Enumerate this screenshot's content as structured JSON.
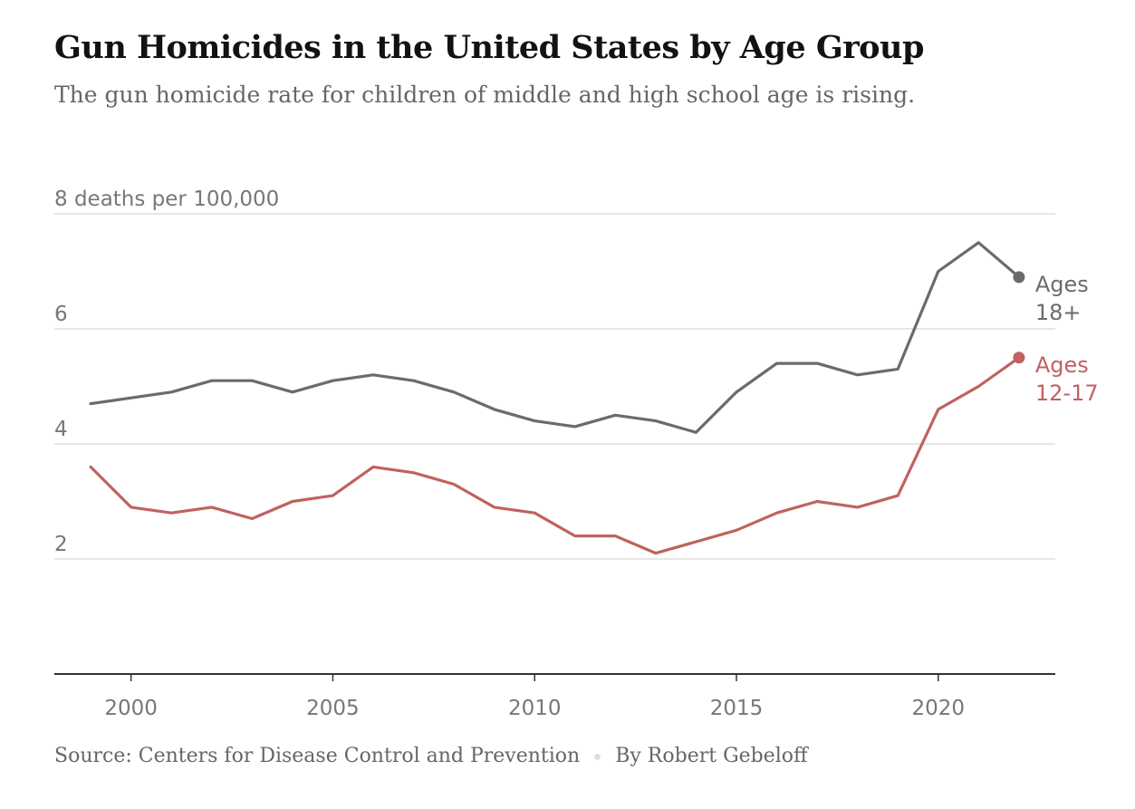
{
  "header": {
    "title": "Gun Homicides in the United States by Age Group",
    "subtitle": "The gun homicide rate for children of middle and high school age is rising."
  },
  "footer": {
    "source": "Source: Centers for Disease Control and Prevention",
    "byline": "By Robert Gebeloff"
  },
  "chart_data": {
    "type": "line",
    "title": "Gun Homicides in the United States by Age Group",
    "subtitle": "The gun homicide rate for children of middle and high school age is rising.",
    "ylabel": "deaths per 100,000",
    "ylim": [
      0,
      8
    ],
    "xlim": [
      1998.1,
      2022.9
    ],
    "y_ticks": [
      {
        "value": 2,
        "label": "2"
      },
      {
        "value": 4,
        "label": "4"
      },
      {
        "value": 6,
        "label": "6"
      },
      {
        "value": 8,
        "label": "8 deaths per 100,000"
      }
    ],
    "x_ticks": [
      {
        "value": 2000,
        "label": "2000"
      },
      {
        "value": 2005,
        "label": "2005"
      },
      {
        "value": 2010,
        "label": "2010"
      },
      {
        "value": 2015,
        "label": "2015"
      },
      {
        "value": 2020,
        "label": "2020"
      }
    ],
    "grid": true,
    "x": [
      1999,
      2000,
      2001,
      2002,
      2003,
      2004,
      2005,
      2006,
      2007,
      2008,
      2009,
      2010,
      2011,
      2012,
      2013,
      2014,
      2015,
      2016,
      2017,
      2018,
      2019,
      2020,
      2021,
      2022
    ],
    "series": [
      {
        "name": "Ages 18+",
        "label_lines": [
          "Ages",
          "18+"
        ],
        "color": "#6b6b6b",
        "values": [
          4.7,
          4.8,
          4.9,
          5.1,
          5.1,
          4.9,
          5.1,
          5.2,
          5.1,
          4.9,
          4.6,
          4.4,
          4.3,
          4.5,
          4.4,
          4.2,
          4.9,
          5.4,
          5.4,
          5.2,
          5.3,
          7.0,
          7.5,
          6.9
        ]
      },
      {
        "name": "Ages 12-17",
        "label_lines": [
          "Ages",
          "12-17"
        ],
        "color": "#c0625f",
        "values": [
          3.6,
          2.9,
          2.8,
          2.9,
          2.7,
          3.0,
          3.1,
          3.6,
          3.5,
          3.3,
          2.9,
          2.8,
          2.4,
          2.4,
          2.1,
          2.3,
          2.5,
          2.8,
          3.0,
          2.9,
          3.1,
          4.6,
          5.0,
          5.5
        ]
      }
    ],
    "colors": {
      "gridline": "#dddddd",
      "baseline": "#333333",
      "axis_text": "#777777"
    }
  }
}
